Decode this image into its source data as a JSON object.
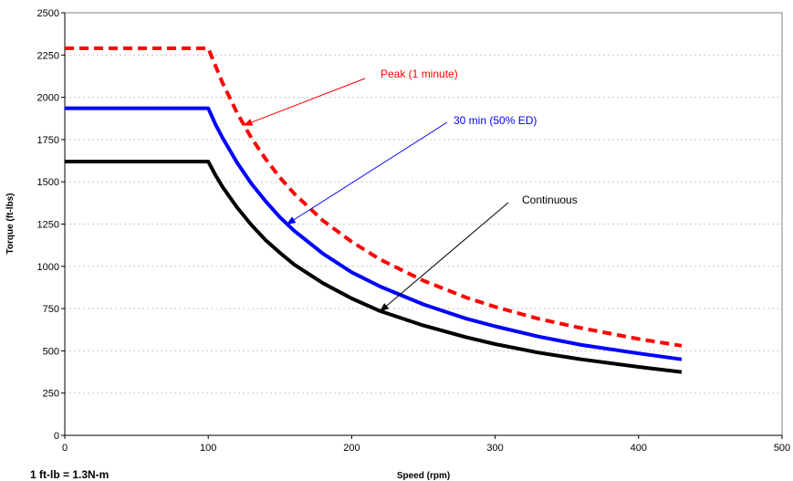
{
  "chart_data": {
    "type": "line",
    "title": "",
    "xlabel": "Speed (rpm)",
    "ylabel": "Torque (ft-lbs)",
    "xlim": [
      0,
      500
    ],
    "ylim": [
      0,
      2500
    ],
    "x_ticks": [
      0,
      100,
      200,
      300,
      400,
      500
    ],
    "x_tick_labels": [
      "0",
      "100",
      "200",
      "300",
      "400",
      "500"
    ],
    "y_ticks": [
      0,
      250,
      500,
      750,
      1000,
      1250,
      1500,
      1750,
      2000,
      2250,
      2500
    ],
    "y_tick_labels": [
      "0",
      "250",
      "500",
      "750",
      "1000",
      "1250",
      "1500",
      "1750",
      "2000",
      "2250",
      "2500"
    ],
    "grid": "horizontal-dashed",
    "note": "1 ft-lb = 1.3N-m",
    "series": [
      {
        "name": "Peak (1 minute)",
        "color": "#ff0000",
        "style": "dashed",
        "x": [
          0,
          100,
          110,
          120,
          130,
          140,
          150,
          160,
          180,
          200,
          220,
          250,
          280,
          300,
          330,
          360,
          400,
          430
        ],
        "y": [
          2290,
          2290,
          2085,
          1910,
          1760,
          1635,
          1525,
          1430,
          1270,
          1145,
          1040,
          915,
          815,
          760,
          690,
          635,
          570,
          530
        ]
      },
      {
        "name": "30 min (50% ED)",
        "color": "#0000ff",
        "style": "solid",
        "x": [
          0,
          100,
          105,
          110,
          120,
          130,
          140,
          150,
          160,
          180,
          200,
          220,
          250,
          280,
          300,
          330,
          360,
          400,
          430
        ],
        "y": [
          1935,
          1935,
          1840,
          1760,
          1615,
          1490,
          1385,
          1290,
          1210,
          1075,
          965,
          880,
          775,
          690,
          645,
          585,
          535,
          485,
          450
        ]
      },
      {
        "name": "Continuous",
        "color": "#000000",
        "style": "solid",
        "x": [
          0,
          100,
          105,
          110,
          120,
          130,
          140,
          150,
          160,
          180,
          200,
          220,
          250,
          280,
          300,
          330,
          360,
          400,
          430
        ],
        "y": [
          1620,
          1620,
          1540,
          1470,
          1350,
          1245,
          1155,
          1080,
          1010,
          900,
          810,
          735,
          650,
          580,
          540,
          490,
          450,
          405,
          375
        ]
      }
    ],
    "annotations": [
      {
        "text": "Peak (1 minute)",
        "color": "#ff0000",
        "arrow_to_series": 0
      },
      {
        "text": "30 min (50% ED)",
        "color": "#0000ff",
        "arrow_to_series": 1
      },
      {
        "text": "Continuous",
        "color": "#000000",
        "arrow_to_series": 2
      }
    ]
  }
}
